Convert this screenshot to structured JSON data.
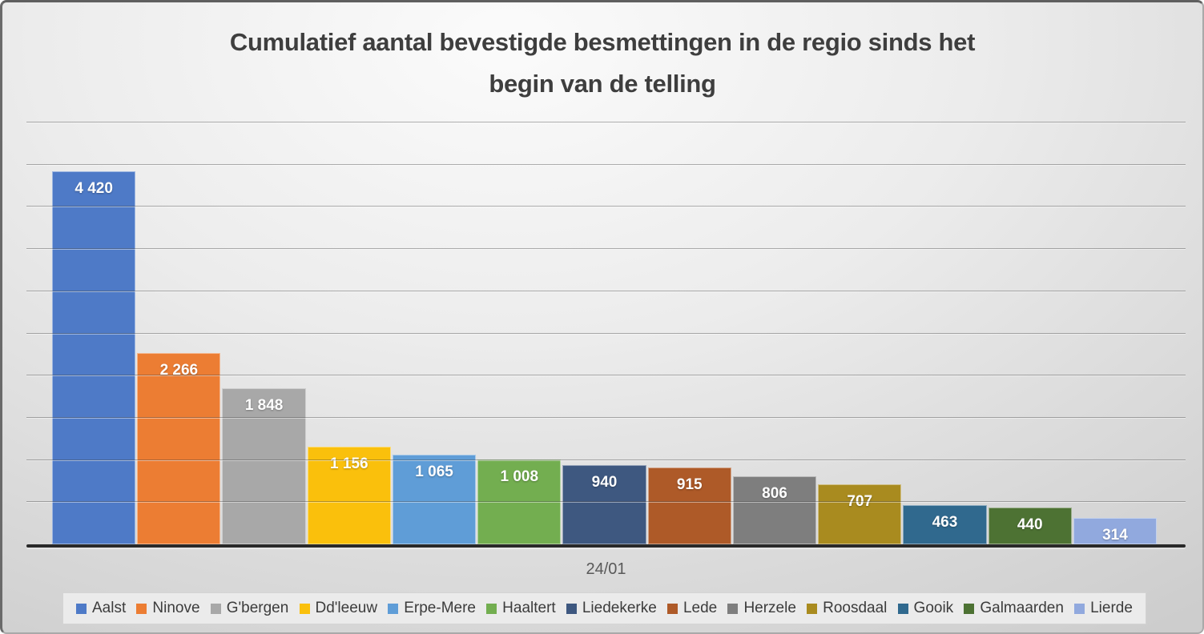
{
  "chart_data": {
    "type": "bar",
    "title": "Cumulatief aantal bevestigde besmettingen in de regio sinds het begin van de telling",
    "title_lines": {
      "0": "Cumulatief aantal bevestigde besmettingen in de regio sinds het",
      "1": "begin van de telling"
    },
    "x_tick_label": "24/01",
    "categories": [
      "Aalst",
      "Ninove",
      "G'bergen",
      "Dd'leeuw",
      "Erpe-Mere",
      "Haaltert",
      "Liedekerke",
      "Lede",
      "Herzele",
      "Roosdaal",
      "Gooik",
      "Galmaarden",
      "Lierde"
    ],
    "values": [
      4420,
      2266,
      1848,
      1156,
      1065,
      1008,
      940,
      915,
      806,
      707,
      463,
      440,
      314
    ],
    "value_labels": [
      "4 420",
      "2 266",
      "1 848",
      "1 156",
      "1 065",
      "1 008",
      "940",
      "915",
      "806",
      "707",
      "463",
      "440",
      "314"
    ],
    "colors": [
      "#4E7AC7",
      "#EC7D33",
      "#A8A8A8",
      "#FAC00C",
      "#5F9DD7",
      "#73AE50",
      "#3E5880",
      "#AE5A28",
      "#7E7E7E",
      "#A98B1F",
      "#30698E",
      "#4D7233",
      "#91A9DE"
    ],
    "ylim": [
      0,
      5000
    ],
    "gridline_step": 500,
    "grid": true,
    "legend_position": "bottom",
    "y_axis_labels_visible": false,
    "xlabel": "",
    "ylabel": ""
  },
  "styles": {
    "value_label_color": "#ffffff",
    "title_color": "#3e3e3e",
    "axis_line_color": "#292929",
    "legend_text_color": "#3c3c3c",
    "gridline_color": "#6f6f6f"
  }
}
